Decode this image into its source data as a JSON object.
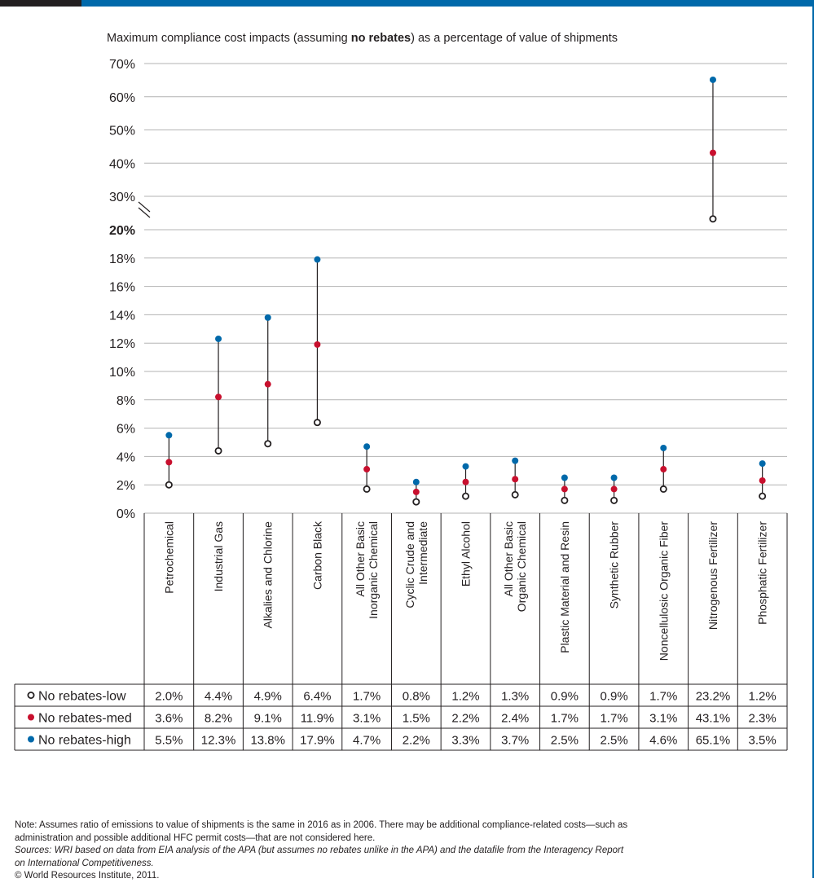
{
  "chart_data": {
    "type": "scatter",
    "title_prefix": "Maximum compliance cost impacts (assuming ",
    "title_bold": "no rebates",
    "title_suffix": ") as a percentage of value of shipments",
    "categories": [
      "Petrochemical",
      "Industrial Gas",
      "Alkalies and Chlorine",
      "Carbon Black",
      "All Other Basic\nInorganic Chemical",
      "Cyclic Crude and\nIntermediate",
      "Ethyl Alcohol",
      "All Other Basic\nOrganic Chemical",
      "Plastic Material and Resin",
      "Synthetic Rubber",
      "Noncellulosic Organic Fiber",
      "Nitrogenous Fertilizer",
      "Phosphatic Fertilizer"
    ],
    "series": [
      {
        "name": "No rebates-low",
        "color": "#231f20",
        "values": [
          2.0,
          4.4,
          4.9,
          6.4,
          1.7,
          0.8,
          1.2,
          1.3,
          0.9,
          0.9,
          1.7,
          23.2,
          1.2
        ],
        "labels": [
          "2.0%",
          "4.4%",
          "4.9%",
          "6.4%",
          "1.7%",
          "0.8%",
          "1.2%",
          "1.3%",
          "0.9%",
          "0.9%",
          "1.7%",
          "23.2%",
          "1.2%"
        ]
      },
      {
        "name": "No rebates-med",
        "color": "#c8102e",
        "values": [
          3.6,
          8.2,
          9.1,
          11.9,
          3.1,
          1.5,
          2.2,
          2.4,
          1.7,
          1.7,
          3.1,
          43.1,
          2.3
        ],
        "labels": [
          "3.6%",
          "8.2%",
          "9.1%",
          "11.9%",
          "3.1%",
          "1.5%",
          "2.2%",
          "2.4%",
          "1.7%",
          "1.7%",
          "3.1%",
          "43.1%",
          "2.3%"
        ]
      },
      {
        "name": "No rebates-high",
        "color": "#0069aa",
        "values": [
          5.5,
          12.3,
          13.8,
          17.9,
          4.7,
          2.2,
          3.3,
          3.7,
          2.5,
          2.5,
          4.6,
          65.1,
          3.5
        ],
        "labels": [
          "5.5%",
          "12.3%",
          "13.8%",
          "17.9%",
          "4.7%",
          "2.2%",
          "3.3%",
          "3.7%",
          "2.5%",
          "2.5%",
          "4.6%",
          "65.1%",
          "3.5%"
        ]
      }
    ],
    "y_lower": {
      "ylim": [
        0,
        20
      ],
      "ticks": [
        0,
        2,
        4,
        6,
        8,
        10,
        12,
        14,
        16,
        18,
        20
      ],
      "tick_labels": [
        "0%",
        "2%",
        "4%",
        "6%",
        "8%",
        "10%",
        "12%",
        "14%",
        "16%",
        "18%",
        "20%"
      ]
    },
    "y_upper": {
      "ylim": [
        20,
        70
      ],
      "ticks": [
        30,
        40,
        50,
        60,
        70
      ],
      "tick_labels": [
        "30%",
        "40%",
        "50%",
        "60%",
        "70%"
      ]
    },
    "axis_break": "20%-30%",
    "grid": true
  },
  "notes": {
    "note_line1": "Note:  Assumes ratio of emissions to value of shipments is the same in 2016 as in 2006.  There may be additional compliance-related costs—such as",
    "note_line2": "administration and possible additional HFC permit costs—that are not considered here.",
    "sources_line1": "Sources: WRI based on data from EIA analysis of the APA (but assumes no rebates unlike in the APA) and the datafile from the Interagency Report",
    "sources_line2": "on International Competitiveness.",
    "copyright": "© World Resources Institute, 2011."
  },
  "colors": {
    "top_bar_dark": "#231f20",
    "top_bar_accent": "#0069aa",
    "grid": "#b3b3b3",
    "low": "#231f20",
    "med": "#c8102e",
    "high": "#0069aa"
  }
}
